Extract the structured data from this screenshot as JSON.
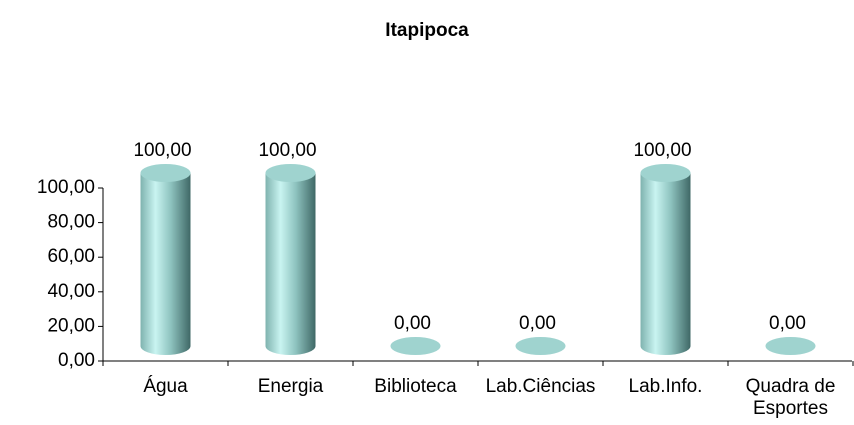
{
  "chart_data": {
    "type": "bar",
    "title": "Itapipoca",
    "categories": [
      "Água",
      "Energia",
      "Biblioteca",
      "Lab.Ciências",
      "Lab.Info.",
      "Quadra de Esportes"
    ],
    "values": [
      100,
      100,
      0,
      0,
      100,
      0
    ],
    "value_labels": [
      "100,00",
      "100,00",
      "0,00",
      "0,00",
      "100,00",
      "0,00"
    ],
    "color": "#9fd3cf",
    "ylim": [
      0,
      100
    ],
    "yticks": [
      {
        "value": 0,
        "label": "0,00"
      },
      {
        "value": 20,
        "label": "20,00"
      },
      {
        "value": 40,
        "label": "40,00"
      },
      {
        "value": 60,
        "label": "60,00"
      },
      {
        "value": 80,
        "label": "80,00"
      },
      {
        "value": 100,
        "label": "100,00"
      }
    ]
  }
}
